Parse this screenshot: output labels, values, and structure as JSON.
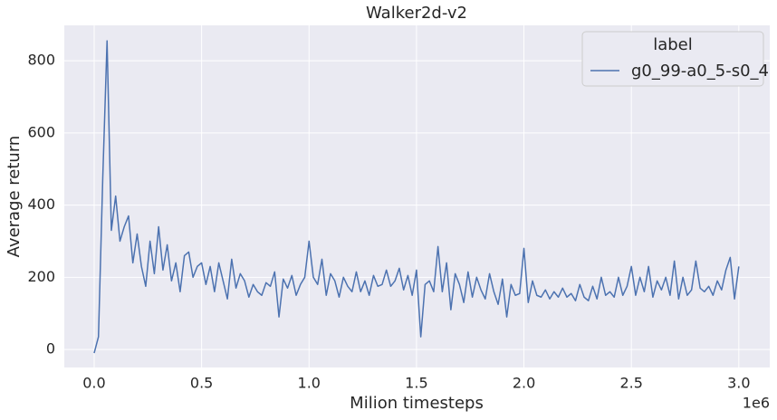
{
  "chart_data": {
    "type": "line",
    "title": "Walker2d-v2",
    "x_label": "Milion timesteps",
    "y_label": "Average return",
    "x_offset_label": "1e6",
    "legend_title": "label",
    "legend_position": "upper right",
    "grid": true,
    "xlim": [
      -139000,
      3144000
    ],
    "ylim": [
      -50,
      898
    ],
    "xticks": [
      {
        "value": 0,
        "label": "0.0"
      },
      {
        "value": 500000,
        "label": "0.5"
      },
      {
        "value": 1000000,
        "label": "1.0"
      },
      {
        "value": 1500000,
        "label": "1.5"
      },
      {
        "value": 2000000,
        "label": "2.0"
      },
      {
        "value": 2500000,
        "label": "2.5"
      },
      {
        "value": 3000000,
        "label": "3.0"
      }
    ],
    "yticks": [
      0,
      200,
      400,
      600,
      800
    ],
    "x": [
      0,
      20000,
      40000,
      60000,
      80000,
      100000,
      120000,
      140000,
      160000,
      180000,
      200000,
      220000,
      240000,
      260000,
      280000,
      300000,
      320000,
      340000,
      360000,
      380000,
      400000,
      420000,
      440000,
      460000,
      480000,
      500000,
      520000,
      540000,
      560000,
      580000,
      600000,
      620000,
      640000,
      660000,
      680000,
      700000,
      720000,
      740000,
      760000,
      780000,
      800000,
      820000,
      840000,
      860000,
      880000,
      900000,
      920000,
      940000,
      960000,
      980000,
      1000000,
      1020000,
      1040000,
      1060000,
      1080000,
      1100000,
      1120000,
      1140000,
      1160000,
      1180000,
      1200000,
      1220000,
      1240000,
      1260000,
      1280000,
      1300000,
      1320000,
      1340000,
      1360000,
      1380000,
      1400000,
      1420000,
      1440000,
      1460000,
      1480000,
      1500000,
      1520000,
      1540000,
      1560000,
      1580000,
      1600000,
      1620000,
      1640000,
      1660000,
      1680000,
      1700000,
      1720000,
      1740000,
      1760000,
      1780000,
      1800000,
      1820000,
      1840000,
      1860000,
      1880000,
      1900000,
      1920000,
      1940000,
      1960000,
      1980000,
      2000000,
      2020000,
      2040000,
      2060000,
      2080000,
      2100000,
      2120000,
      2140000,
      2160000,
      2180000,
      2200000,
      2220000,
      2240000,
      2260000,
      2280000,
      2300000,
      2320000,
      2340000,
      2360000,
      2380000,
      2400000,
      2420000,
      2440000,
      2460000,
      2480000,
      2500000,
      2520000,
      2540000,
      2560000,
      2580000,
      2600000,
      2620000,
      2640000,
      2660000,
      2680000,
      2700000,
      2720000,
      2740000,
      2760000,
      2780000,
      2800000,
      2820000,
      2840000,
      2860000,
      2880000,
      2900000,
      2920000,
      2940000,
      2960000,
      2980000,
      3000000
    ],
    "series": [
      {
        "name": "g0_99-a0_5-s0_4",
        "color": "#4c72b0",
        "values": [
          -10,
          35,
          475,
          855,
          330,
          425,
          300,
          340,
          370,
          240,
          320,
          230,
          175,
          300,
          210,
          340,
          220,
          290,
          190,
          240,
          160,
          260,
          270,
          200,
          230,
          240,
          180,
          230,
          160,
          240,
          190,
          140,
          250,
          170,
          210,
          190,
          145,
          180,
          160,
          150,
          185,
          175,
          215,
          90,
          195,
          170,
          205,
          150,
          180,
          200,
          300,
          200,
          180,
          250,
          150,
          210,
          190,
          145,
          200,
          175,
          160,
          215,
          160,
          190,
          150,
          205,
          175,
          180,
          220,
          175,
          190,
          225,
          165,
          205,
          150,
          220,
          35,
          180,
          190,
          160,
          285,
          160,
          240,
          110,
          210,
          180,
          130,
          215,
          145,
          200,
          165,
          140,
          210,
          160,
          125,
          195,
          90,
          180,
          150,
          155,
          280,
          130,
          190,
          150,
          145,
          165,
          140,
          160,
          145,
          170,
          145,
          155,
          135,
          180,
          145,
          135,
          175,
          140,
          200,
          150,
          160,
          145,
          200,
          150,
          175,
          230,
          150,
          200,
          160,
          230,
          145,
          190,
          165,
          200,
          150,
          245,
          140,
          200,
          150,
          165,
          245,
          170,
          160,
          175,
          150,
          190,
          165,
          220,
          255,
          140,
          230
        ]
      }
    ]
  }
}
